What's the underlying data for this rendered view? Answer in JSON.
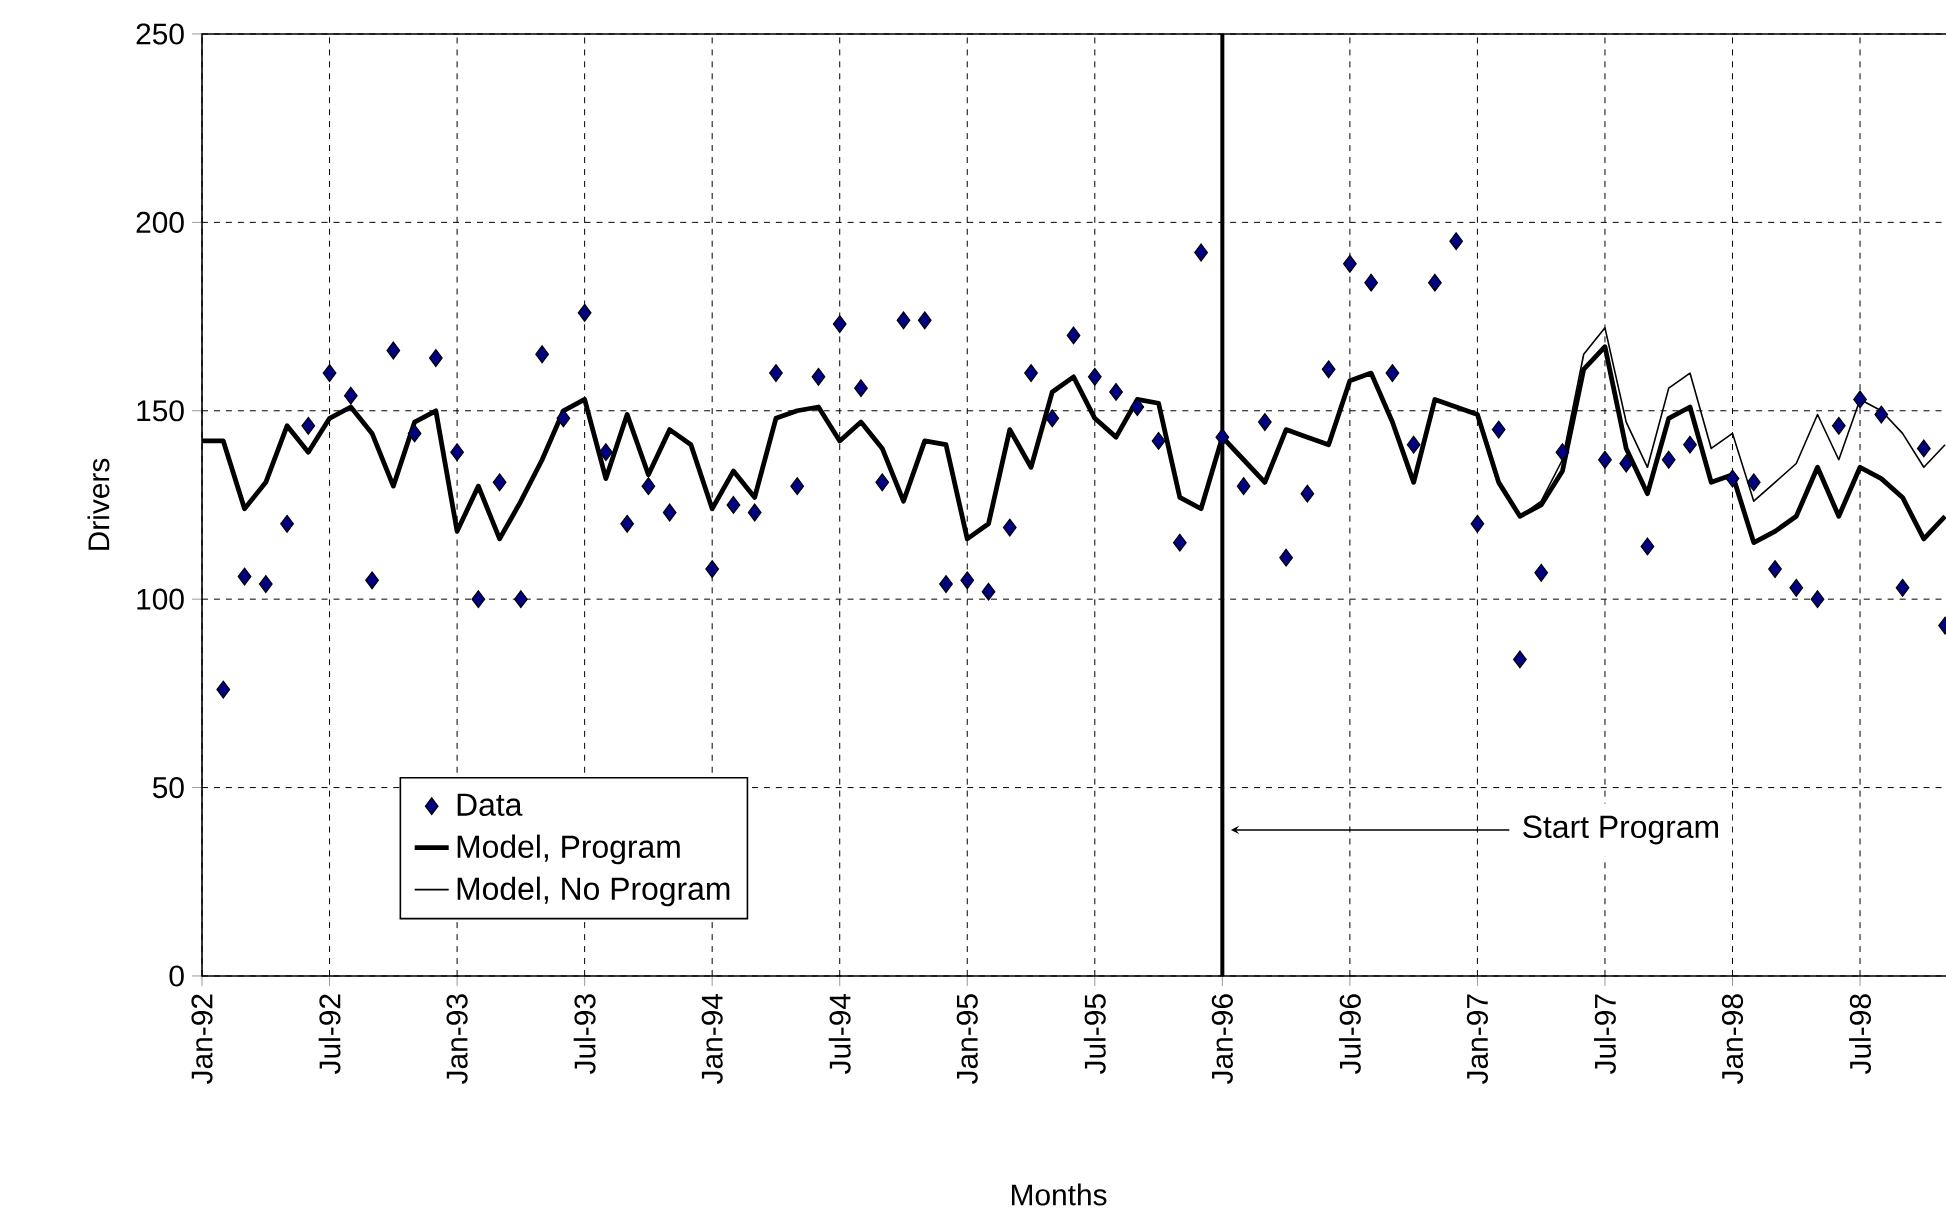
{
  "chart_data": {
    "type": "line",
    "xlabel": "Months",
    "ylabel": "Drivers",
    "x": [
      "1992-01",
      "1992-02",
      "1992-03",
      "1992-04",
      "1992-05",
      "1992-06",
      "1992-07",
      "1992-08",
      "1992-09",
      "1992-10",
      "1992-11",
      "1992-12",
      "1993-01",
      "1993-02",
      "1993-03",
      "1993-04",
      "1993-05",
      "1993-06",
      "1993-07",
      "1993-08",
      "1993-09",
      "1993-10",
      "1993-11",
      "1993-12",
      "1994-01",
      "1994-02",
      "1994-03",
      "1994-04",
      "1994-05",
      "1994-06",
      "1994-07",
      "1994-08",
      "1994-09",
      "1994-10",
      "1994-11",
      "1994-12",
      "1995-01",
      "1995-02",
      "1995-03",
      "1995-04",
      "1995-05",
      "1995-06",
      "1995-07",
      "1995-08",
      "1995-09",
      "1995-10",
      "1995-11",
      "1995-12",
      "1996-01",
      "1996-02",
      "1996-03",
      "1996-04",
      "1996-05",
      "1996-06",
      "1996-07",
      "1996-08",
      "1996-09",
      "1996-10",
      "1996-11",
      "1996-12",
      "1997-01",
      "1997-02",
      "1997-03",
      "1997-04",
      "1997-05",
      "1997-06",
      "1997-07",
      "1997-08",
      "1997-09",
      "1997-10",
      "1997-11",
      "1997-12",
      "1998-01",
      "1998-02",
      "1998-03",
      "1998-04",
      "1998-05",
      "1998-06",
      "1998-07",
      "1998-08",
      "1998-09",
      "1998-10",
      "1998-11"
    ],
    "series": [
      {
        "name": "Data",
        "type": "scatter",
        "marker": "diamond",
        "color": "#000080",
        "values": [
          null,
          76,
          106,
          104,
          120,
          146,
          160,
          154,
          105,
          166,
          144,
          164,
          139,
          100,
          131,
          100,
          165,
          148,
          176,
          139,
          120,
          130,
          123,
          null,
          108,
          125,
          123,
          160,
          130,
          159,
          173,
          156,
          131,
          174,
          174,
          104,
          105,
          102,
          119,
          160,
          148,
          170,
          159,
          155,
          151,
          142,
          115,
          192,
          143,
          130,
          147,
          111,
          128,
          161,
          189,
          184,
          160,
          141,
          184,
          195,
          120,
          145,
          84,
          107,
          139,
          null,
          137,
          136,
          114,
          137,
          141,
          null,
          132,
          131,
          108,
          103,
          100,
          146,
          153,
          149,
          103,
          140,
          93
        ]
      },
      {
        "name": "Model, Program",
        "type": "line",
        "color": "#000000",
        "values": [
          142,
          142,
          124,
          131,
          146,
          139,
          148,
          151,
          144,
          130,
          147,
          150,
          118,
          130,
          116,
          126,
          137,
          150,
          153,
          132,
          149,
          133,
          145,
          141,
          124,
          134,
          127,
          148,
          150,
          151,
          142,
          147,
          140,
          126,
          142,
          141,
          116,
          120,
          145,
          135,
          155,
          159,
          148,
          143,
          153,
          152,
          127,
          124,
          143,
          137,
          131,
          145,
          143,
          141,
          158,
          160,
          147,
          131,
          153,
          151,
          149,
          131,
          122,
          125,
          134,
          161,
          167,
          140,
          128,
          148,
          151,
          131,
          133,
          115,
          118,
          122,
          135,
          122,
          135,
          132,
          127,
          116,
          122
        ]
      },
      {
        "name": "Model, No Program",
        "type": "line",
        "color": "#000000",
        "values": [
          142,
          142,
          124,
          131,
          146,
          139,
          148,
          151,
          144,
          130,
          147,
          150,
          118,
          130,
          116,
          126,
          137,
          150,
          153,
          132,
          149,
          133,
          145,
          141,
          124,
          134,
          127,
          148,
          150,
          151,
          142,
          147,
          140,
          126,
          142,
          141,
          116,
          120,
          145,
          135,
          155,
          159,
          148,
          143,
          153,
          152,
          127,
          124,
          143,
          137,
          131,
          145,
          143,
          141,
          158,
          160,
          147,
          131,
          153,
          151,
          149,
          131,
          122,
          126,
          137,
          165,
          172,
          147,
          135,
          156,
          160,
          140,
          144,
          126,
          131,
          136,
          149,
          137,
          153,
          150,
          144,
          135,
          141
        ]
      }
    ],
    "xlim": [
      "1992-01",
      "1998-11-08"
    ],
    "xticks": [
      {
        "value": "1992-01",
        "label": "Jan-92"
      },
      {
        "value": "1992-07",
        "label": "Jul-92"
      },
      {
        "value": "1993-01",
        "label": "Jan-93"
      },
      {
        "value": "1993-07",
        "label": "Jul-93"
      },
      {
        "value": "1994-01",
        "label": "Jan-94"
      },
      {
        "value": "1994-07",
        "label": "Jul-94"
      },
      {
        "value": "1995-01",
        "label": "Jan-95"
      },
      {
        "value": "1995-07",
        "label": "Jul-95"
      },
      {
        "value": "1996-01",
        "label": "Jan-96"
      },
      {
        "value": "1996-07",
        "label": "Jul-96"
      },
      {
        "value": "1997-01",
        "label": "Jan-97"
      },
      {
        "value": "1997-07",
        "label": "Jul-97"
      },
      {
        "value": "1998-01",
        "label": "Jan-98"
      },
      {
        "value": "1998-07",
        "label": "Jul-98"
      }
    ],
    "ylim": [
      0,
      250
    ],
    "yticks": [
      0,
      50,
      100,
      150,
      200,
      250
    ],
    "ref_lines": [
      {
        "axis": "x",
        "value": "1996-01",
        "label": "Start Program",
        "color": "#000000"
      }
    ],
    "grid": true,
    "legend": "bottom left"
  }
}
